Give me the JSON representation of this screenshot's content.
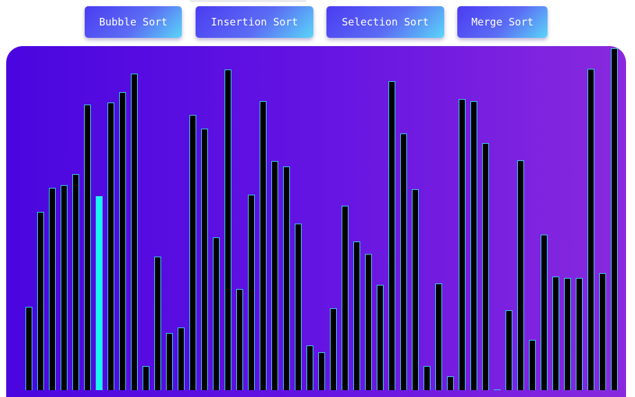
{
  "buttons": [
    {
      "label": "Bubble Sort"
    },
    {
      "label": "Insertion Sort"
    },
    {
      "label": "Selection Sort"
    },
    {
      "label": "Merge Sort"
    }
  ],
  "colors": {
    "bar_fill": "#000000",
    "bar_outline": "#36d6ee",
    "active_bar": "#18f6f6",
    "stage_gradient_start": "#4a06df",
    "stage_gradient_end": "#8929de"
  },
  "array": {
    "active_index": 6,
    "values": [
      121,
      259,
      294,
      298,
      314,
      415,
      282,
      418,
      433,
      460,
      35,
      194,
      83,
      91,
      400,
      380,
      222,
      466,
      147,
      284,
      420,
      333,
      325,
      242,
      65,
      55,
      119,
      268,
      216,
      198,
      153,
      449,
      373,
      292,
      35,
      155,
      20,
      423,
      420,
      359,
      0,
      116,
      334,
      73,
      226,
      165,
      163,
      163,
      467,
      170,
      497
    ]
  }
}
